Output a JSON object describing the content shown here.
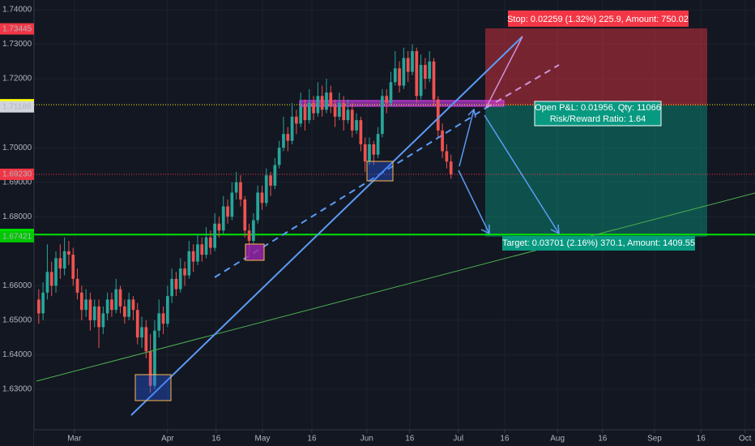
{
  "chart_data": {
    "type": "candlestick",
    "up_color": "#26a69a",
    "down_color": "#ef5350",
    "grid": true,
    "xlim": [
      -1.1,
      166.8
    ],
    "ylim": [
      1.61825,
      1.74282
    ],
    "xticks": [
      {
        "value": 8.3,
        "label": "Mar"
      },
      {
        "value": 30,
        "label": "Apr"
      },
      {
        "value": 41.3,
        "label": "16"
      },
      {
        "value": 52.1,
        "label": "May"
      },
      {
        "value": 63.6,
        "label": "16"
      },
      {
        "value": 76.4,
        "label": "Jun"
      },
      {
        "value": 86.4,
        "label": "16"
      },
      {
        "value": 97.7,
        "label": "Jul"
      },
      {
        "value": 108.5,
        "label": "16"
      },
      {
        "value": 120.8,
        "label": "Aug"
      },
      {
        "value": 131.3,
        "label": "16"
      },
      {
        "value": 143.4,
        "label": "Sep"
      },
      {
        "value": 154.2,
        "label": "16"
      },
      {
        "value": 164.5,
        "label": "Oct"
      }
    ],
    "yticks": [
      {
        "value": 1.74,
        "label": "1.74000"
      },
      {
        "value": 1.73,
        "label": "1.73000"
      },
      {
        "value": 1.72,
        "label": "1.72000"
      },
      {
        "value": 1.7,
        "label": "1.70000"
      },
      {
        "value": 1.69,
        "label": "1.69000"
      },
      {
        "value": 1.68,
        "label": "1.68000"
      },
      {
        "value": 1.66,
        "label": "1.66000"
      },
      {
        "value": 1.65,
        "label": "1.65000"
      },
      {
        "value": 1.64,
        "label": "1.64000"
      },
      {
        "value": 1.63,
        "label": "1.63000"
      }
    ],
    "price_labels": [
      {
        "value": 1.73445,
        "label": "1.73445",
        "color": "#f23645",
        "text_color": "#ffffff"
      },
      {
        "value": 1.71246,
        "label": "1.71246",
        "color": "#ffff00",
        "text_color": "#000000",
        "line": "dotted"
      },
      {
        "value": 1.71186,
        "label": "1.71186",
        "color": "#d1d4dc",
        "text_color": "#000000"
      },
      {
        "value": 1.6923,
        "label": "1.69230",
        "color": "#f23645",
        "text_color": "#ffffff",
        "line": "dotted"
      },
      {
        "value": 1.67485,
        "label": "1.67485",
        "color": "#00e600",
        "text_color": "#000000",
        "line": "solid"
      },
      {
        "value": 1.67421,
        "label": "1.67421",
        "color": "#00c800",
        "text_color": "#000000"
      }
    ],
    "annotations": {
      "stop": "Stop: 0.02259 (1.32%) 225.9, Amount: 750.02",
      "open_pnl": "Open P&L: 0.01956, Qty: 11066",
      "risk_reward": "Risk/Reward Ratio: 1.64",
      "target": "Target: 0.03701 (2.16%) 370.1, Amount: 1409.55"
    },
    "candles": [
      [
        1.656,
        1.659,
        1.649,
        1.652
      ],
      [
        1.652,
        1.661,
        1.65,
        1.658
      ],
      [
        1.658,
        1.672,
        1.656,
        1.664
      ],
      [
        1.664,
        1.667,
        1.657,
        1.66
      ],
      [
        1.66,
        1.67,
        1.658,
        1.668
      ],
      [
        1.668,
        1.672,
        1.662,
        1.665
      ],
      [
        1.665,
        1.674,
        1.663,
        1.67
      ],
      [
        1.67,
        1.673,
        1.666,
        1.669
      ],
      [
        1.669,
        1.671,
        1.66,
        1.662
      ],
      [
        1.662,
        1.665,
        1.656,
        1.658
      ],
      [
        1.658,
        1.66,
        1.65,
        1.653
      ],
      [
        1.653,
        1.659,
        1.651,
        1.656
      ],
      [
        1.656,
        1.658,
        1.647,
        1.65
      ],
      [
        1.65,
        1.656,
        1.648,
        1.654
      ],
      [
        1.654,
        1.656,
        1.642,
        1.648
      ],
      [
        1.648,
        1.654,
        1.646,
        1.652
      ],
      [
        1.652,
        1.658,
        1.65,
        1.656
      ],
      [
        1.656,
        1.658,
        1.651,
        1.653
      ],
      [
        1.653,
        1.662,
        1.652,
        1.659
      ],
      [
        1.659,
        1.66,
        1.652,
        1.654
      ],
      [
        1.654,
        1.656,
        1.649,
        1.651
      ],
      [
        1.651,
        1.658,
        1.65,
        1.656
      ],
      [
        1.656,
        1.657,
        1.65,
        1.653
      ],
      [
        1.653,
        1.655,
        1.643,
        1.645
      ],
      [
        1.645,
        1.651,
        1.642,
        1.648
      ],
      [
        1.648,
        1.65,
        1.639,
        1.641
      ],
      [
        1.641,
        1.646,
        1.629,
        1.631
      ],
      [
        1.631,
        1.65,
        1.63,
        1.647
      ],
      [
        1.647,
        1.656,
        1.645,
        1.652
      ],
      [
        1.652,
        1.654,
        1.646,
        1.649
      ],
      [
        1.649,
        1.66,
        1.648,
        1.657
      ],
      [
        1.657,
        1.665,
        1.655,
        1.662
      ],
      [
        1.662,
        1.664,
        1.657,
        1.659
      ],
      [
        1.659,
        1.668,
        1.658,
        1.665
      ],
      [
        1.665,
        1.667,
        1.66,
        1.663
      ],
      [
        1.663,
        1.673,
        1.662,
        1.67
      ],
      [
        1.67,
        1.672,
        1.664,
        1.667
      ],
      [
        1.667,
        1.675,
        1.666,
        1.672
      ],
      [
        1.672,
        1.674,
        1.667,
        1.669
      ],
      [
        1.669,
        1.677,
        1.668,
        1.674
      ],
      [
        1.674,
        1.676,
        1.669,
        1.671
      ],
      [
        1.671,
        1.681,
        1.67,
        1.678
      ],
      [
        1.678,
        1.68,
        1.674,
        1.676
      ],
      [
        1.676,
        1.686,
        1.675,
        1.683
      ],
      [
        1.683,
        1.685,
        1.678,
        1.68
      ],
      [
        1.68,
        1.69,
        1.679,
        1.687
      ],
      [
        1.687,
        1.693,
        1.685,
        1.69
      ],
      [
        1.69,
        1.692,
        1.683,
        1.685
      ],
      [
        1.685,
        1.686,
        1.674,
        1.676
      ],
      [
        1.676,
        1.678,
        1.669,
        1.673
      ],
      [
        1.673,
        1.681,
        1.672,
        1.679
      ],
      [
        1.679,
        1.689,
        1.678,
        1.687
      ],
      [
        1.687,
        1.689,
        1.682,
        1.684
      ],
      [
        1.684,
        1.694,
        1.683,
        1.692
      ],
      [
        1.692,
        1.693,
        1.686,
        1.689
      ],
      [
        1.689,
        1.697,
        1.688,
        1.695
      ],
      [
        1.695,
        1.702,
        1.694,
        1.7
      ],
      [
        1.7,
        1.709,
        1.699,
        1.704
      ],
      [
        1.704,
        1.706,
        1.699,
        1.702
      ],
      [
        1.702,
        1.713,
        1.701,
        1.709
      ],
      [
        1.709,
        1.711,
        1.704,
        1.707
      ],
      [
        1.707,
        1.716,
        1.706,
        1.712
      ],
      [
        1.712,
        1.714,
        1.705,
        1.708
      ],
      [
        1.708,
        1.717,
        1.707,
        1.713
      ],
      [
        1.713,
        1.715,
        1.708,
        1.71
      ],
      [
        1.71,
        1.719,
        1.709,
        1.715
      ],
      [
        1.715,
        1.718,
        1.709,
        1.711
      ],
      [
        1.711,
        1.72,
        1.71,
        1.716
      ],
      [
        1.716,
        1.718,
        1.71,
        1.712
      ],
      [
        1.712,
        1.714,
        1.706,
        1.709
      ],
      [
        1.709,
        1.716,
        1.708,
        1.713
      ],
      [
        1.713,
        1.715,
        1.705,
        1.708
      ],
      [
        1.708,
        1.714,
        1.707,
        1.711
      ],
      [
        1.711,
        1.713,
        1.703,
        1.705
      ],
      [
        1.705,
        1.71,
        1.704,
        1.708
      ],
      [
        1.708,
        1.709,
        1.699,
        1.701
      ],
      [
        1.701,
        1.703,
        1.693,
        1.696
      ],
      [
        1.696,
        1.703,
        1.695,
        1.701
      ],
      [
        1.701,
        1.702,
        1.695,
        1.698
      ],
      [
        1.698,
        1.706,
        1.697,
        1.704
      ],
      [
        1.704,
        1.717,
        1.703,
        1.715
      ],
      [
        1.715,
        1.717,
        1.71,
        1.713
      ],
      [
        1.713,
        1.722,
        1.712,
        1.719
      ],
      [
        1.719,
        1.728,
        1.718,
        1.723
      ],
      [
        1.723,
        1.725,
        1.716,
        1.718
      ],
      [
        1.718,
        1.729,
        1.717,
        1.726
      ],
      [
        1.726,
        1.728,
        1.719,
        1.722
      ],
      [
        1.722,
        1.73,
        1.721,
        1.728
      ],
      [
        1.728,
        1.729,
        1.713,
        1.715
      ],
      [
        1.715,
        1.727,
        1.714,
        1.724
      ],
      [
        1.724,
        1.726,
        1.717,
        1.72
      ],
      [
        1.72,
        1.728,
        1.719,
        1.725
      ],
      [
        1.725,
        1.726,
        1.712,
        1.714
      ],
      [
        1.714,
        1.715,
        1.703,
        1.705
      ],
      [
        1.705,
        1.707,
        1.697,
        1.699
      ],
      [
        1.699,
        1.701,
        1.694,
        1.696
      ],
      [
        1.696,
        1.698,
        1.691,
        1.6923
      ]
    ]
  }
}
